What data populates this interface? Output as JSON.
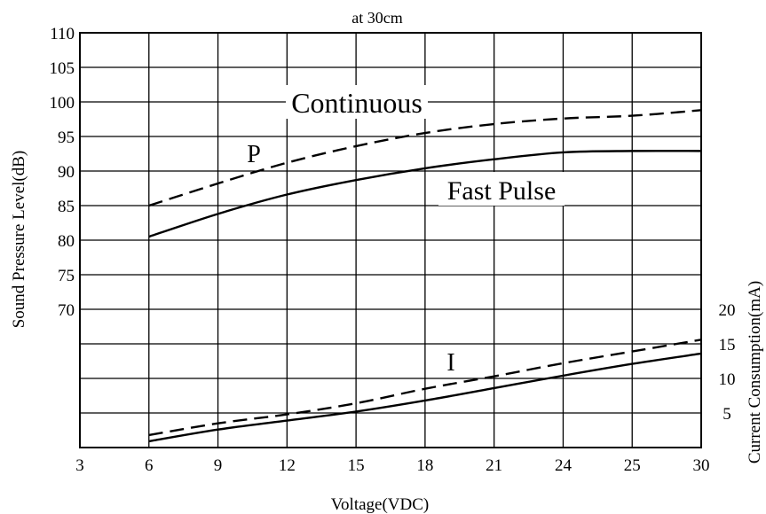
{
  "chart_data": {
    "type": "line",
    "title": "at 30cm",
    "xlabel": "Voltage(VDC)",
    "ylabel": "Sound Pressure Level(dB)",
    "y2label": "Current Consumption(mA)",
    "x_ticks": [
      "3",
      "6",
      "9",
      "12",
      "15",
      "18",
      "21",
      "24",
      "25",
      "30"
    ],
    "y_ticks": [
      "110",
      "105",
      "100",
      "95",
      "90",
      "85",
      "80",
      "75",
      "70"
    ],
    "y2_ticks": [
      "20",
      "15",
      "10",
      "5"
    ],
    "grid": true,
    "annotations": {
      "continuous": "Continuous",
      "fast_pulse": "Fast Pulse",
      "p": "P",
      "i": "I"
    },
    "series": [
      {
        "name": "Continuous",
        "group": "P",
        "style": "dashed",
        "x": [
          6,
          9,
          12,
          15,
          18,
          21,
          24,
          25,
          30
        ],
        "values": [
          85,
          88.2,
          91.2,
          93.6,
          95.5,
          96.8,
          97.6,
          98.0,
          98.8
        ]
      },
      {
        "name": "Fast Pulse",
        "group": "P",
        "style": "solid",
        "x": [
          6,
          9,
          12,
          15,
          18,
          21,
          24,
          25,
          30
        ],
        "values": [
          80.5,
          83.8,
          86.6,
          88.7,
          90.4,
          91.7,
          92.7,
          92.9,
          92.9
        ]
      },
      {
        "name": "Continuous",
        "group": "I",
        "style": "dashed",
        "x": [
          6,
          9,
          12,
          15,
          18,
          21,
          24,
          25,
          30
        ],
        "values": [
          1.8,
          3.5,
          4.8,
          6.4,
          8.5,
          10.3,
          12.2,
          13.9,
          15.6
        ]
      },
      {
        "name": "Fast Pulse",
        "group": "I",
        "style": "solid",
        "x": [
          6,
          9,
          12,
          15,
          18,
          21,
          24,
          25,
          30
        ],
        "values": [
          0.9,
          2.6,
          3.9,
          5.2,
          6.8,
          8.6,
          10.4,
          12.1,
          13.6
        ]
      }
    ]
  }
}
